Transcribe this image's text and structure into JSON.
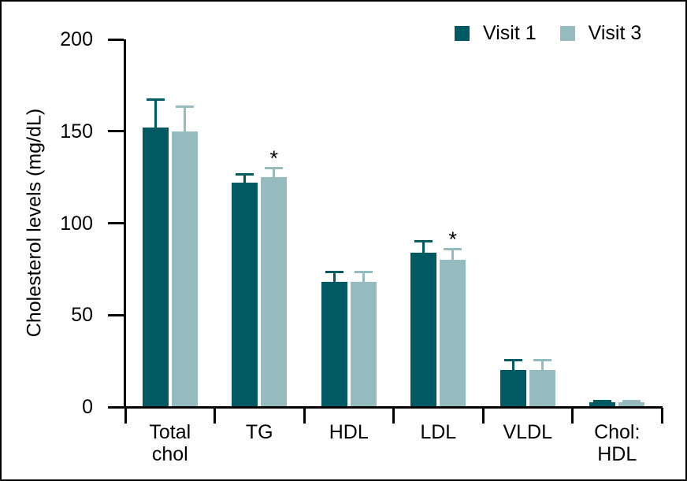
{
  "figure": {
    "background": "#ffffff",
    "border_color": "#000000"
  },
  "legend": {
    "position": "top-right",
    "items": [
      {
        "label": "Visit 1",
        "color": "#005A64"
      },
      {
        "label": "Visit 3",
        "color": "#96BBBE"
      }
    ]
  },
  "chart_data": {
    "type": "bar",
    "title": "",
    "xlabel": "",
    "ylabel": "Cholesterol levels (mg/dL)",
    "units": "mg/dL",
    "ylim": [
      0,
      200
    ],
    "yticks": [
      0,
      50,
      100,
      150,
      200
    ],
    "grid": false,
    "legend_position": "top-right",
    "categories": [
      "Total chol",
      "TG",
      "HDL",
      "LDL",
      "VLDL",
      "Chol: HDL"
    ],
    "category_label_lines": [
      [
        "Total",
        "chol"
      ],
      [
        "TG"
      ],
      [
        "HDL"
      ],
      [
        "LDL"
      ],
      [
        "VLDL"
      ],
      [
        "Chol:",
        "HDL"
      ]
    ],
    "series": [
      {
        "name": "Visit 1",
        "color": "#005A64",
        "values": [
          152,
          122,
          68,
          84,
          20,
          2.5
        ],
        "errors_plus": [
          16,
          5,
          6,
          7,
          6,
          1.5
        ],
        "significance": [
          "",
          "",
          "",
          "",
          "",
          ""
        ]
      },
      {
        "name": "Visit 3",
        "color": "#96BBBE",
        "values": [
          150,
          125,
          68,
          80,
          20,
          2.5
        ],
        "errors_plus": [
          14,
          5.5,
          6,
          6.5,
          6,
          1.5
        ],
        "significance": [
          "",
          "*",
          "",
          "*",
          "",
          ""
        ]
      }
    ]
  }
}
